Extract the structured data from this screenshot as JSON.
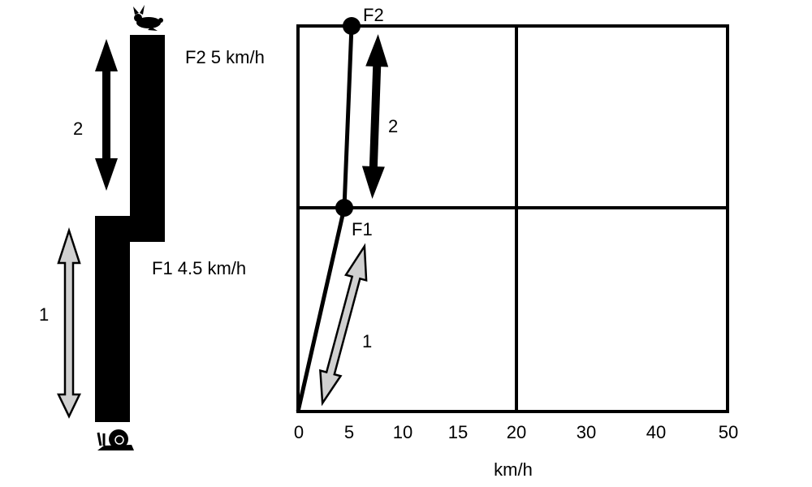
{
  "left": {
    "f2_label": "F2 5 km/h",
    "f1_label": "F1 4.5 km/h",
    "arrow2_label": "2",
    "arrow1_label": "1",
    "top_icon": "rabbit-icon",
    "bottom_icon": "snail-icon"
  },
  "graph": {
    "point_f2": "F2",
    "point_f1": "F1",
    "arrow2_label": "2",
    "arrow1_label": "1",
    "x_ticks": [
      "0",
      "5",
      "10",
      "15",
      "20",
      "30",
      "40",
      "50"
    ],
    "x_label": "km/h"
  },
  "colors": {
    "line": "#000000",
    "arrow1_fill": "#d0d0d0",
    "arrow2_fill": "#000000"
  }
}
